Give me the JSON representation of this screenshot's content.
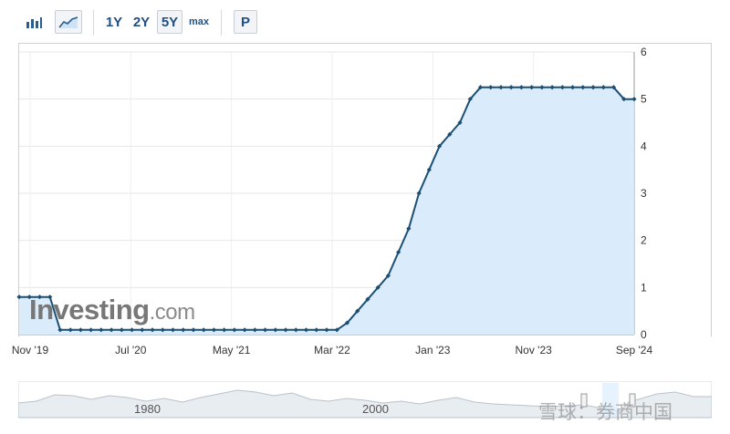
{
  "toolbar": {
    "bar_chart_icon": "bar-chart-icon",
    "area_chart_icon": "area-chart-icon",
    "range_1y": "1Y",
    "range_2y": "2Y",
    "range_5y": "5Y",
    "range_max": "max",
    "p_button": "P"
  },
  "logo": {
    "brand": "Investing",
    "suffix": ".com"
  },
  "navigator": {
    "label_1980": "1980",
    "label_2000": "2000"
  },
  "watermark": "雪球：券商中国",
  "colors": {
    "line": "#1b4f74",
    "fill": "#d8ebfb",
    "accent": "#1f4f84"
  },
  "chart_data": {
    "type": "area",
    "xlabel": "",
    "ylabel": "",
    "ylim": [
      0,
      6
    ],
    "yticks": [
      "0",
      "1",
      "2",
      "3",
      "4",
      "5",
      "6"
    ],
    "xticks": [
      "Nov '19",
      "Jul '20",
      "May '21",
      "Mar '22",
      "Jan '23",
      "Nov '23",
      "Sep '24"
    ],
    "x_start": "Nov '19",
    "x_end": "Sep '24",
    "grid": true,
    "y_axis_position": "right",
    "series": [
      {
        "values": [
          0.8,
          0.8,
          0.8,
          0.8,
          0.1,
          0.1,
          0.1,
          0.1,
          0.1,
          0.1,
          0.1,
          0.1,
          0.1,
          0.1,
          0.1,
          0.1,
          0.1,
          0.1,
          0.1,
          0.1,
          0.1,
          0.1,
          0.1,
          0.1,
          0.1,
          0.1,
          0.1,
          0.1,
          0.1,
          0.1,
          0.1,
          0.1,
          0.25,
          0.5,
          0.75,
          1.0,
          1.25,
          1.75,
          2.25,
          3.0,
          3.5,
          4.0,
          4.25,
          4.5,
          5.0,
          5.25,
          5.25,
          5.25,
          5.25,
          5.25,
          5.25,
          5.25,
          5.25,
          5.25,
          5.25,
          5.25,
          5.25,
          5.25,
          5.25,
          5.0,
          5.0
        ]
      }
    ]
  }
}
